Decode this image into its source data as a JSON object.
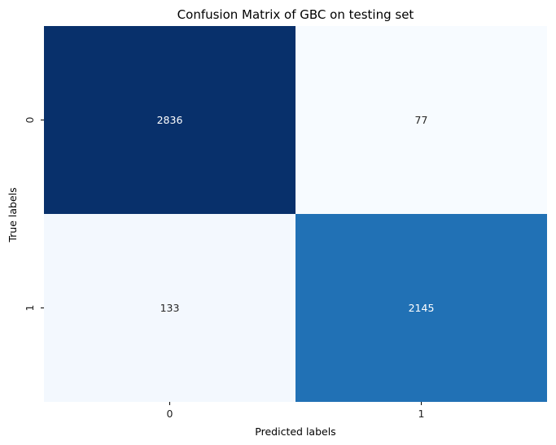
{
  "chart_data": {
    "type": "heatmap",
    "title": "Confusion Matrix of GBC on testing set",
    "xlabel": "Predicted labels",
    "ylabel": "True labels",
    "x_categories": [
      "0",
      "1"
    ],
    "y_categories": [
      "0",
      "1"
    ],
    "values": [
      [
        2836,
        77
      ],
      [
        133,
        2145
      ]
    ],
    "colormap": "Blues",
    "colorbar": false,
    "grid": false
  },
  "colors": {
    "low": "#f7fbff",
    "high": "#08306b",
    "text_dark": "#262626",
    "text_light": "#ffffff"
  }
}
